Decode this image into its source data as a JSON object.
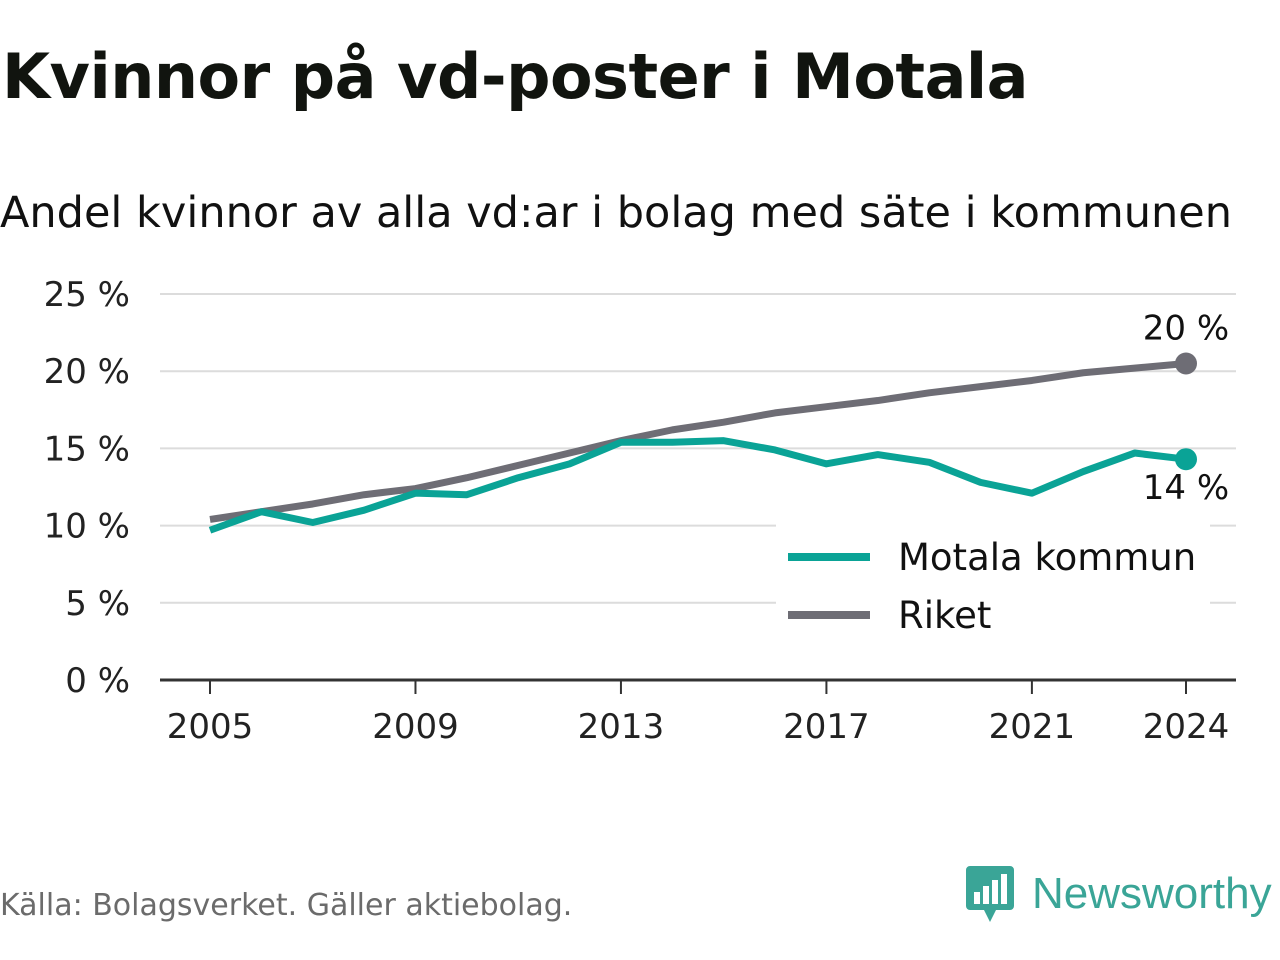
{
  "header": {
    "title": "Kvinnor på vd-poster i Motala",
    "subtitle": "Andel kvinnor av alla vd:ar i bolag med säte i kommunen"
  },
  "footer": {
    "source": "Källa: Bolagsverket. Gäller aktiebolag.",
    "brand": "Newsworthy",
    "brand_icon": "bar-chart-speech-bubble-icon"
  },
  "colors": {
    "motala": "#0aa396",
    "riket": "#6e6d75",
    "grid": "#dcdcdc",
    "axis": "#333333",
    "brand": "#3aa597"
  },
  "chart_data": {
    "type": "line",
    "x": [
      2005,
      2006,
      2007,
      2008,
      2009,
      2010,
      2011,
      2012,
      2013,
      2014,
      2015,
      2016,
      2017,
      2018,
      2019,
      2020,
      2021,
      2022,
      2023,
      2024
    ],
    "series": [
      {
        "name": "Motala kommun",
        "values": [
          9.7,
          10.9,
          10.2,
          11.0,
          12.1,
          12.0,
          13.1,
          14.0,
          15.4,
          15.4,
          15.5,
          14.9,
          14.0,
          14.6,
          14.1,
          12.8,
          12.1,
          13.5,
          14.7,
          14.3
        ]
      },
      {
        "name": "Riket",
        "values": [
          10.4,
          10.9,
          11.4,
          12.0,
          12.4,
          13.1,
          13.9,
          14.7,
          15.5,
          16.2,
          16.7,
          17.3,
          17.7,
          18.1,
          18.6,
          19.0,
          19.4,
          19.9,
          20.2,
          20.5
        ]
      }
    ],
    "end_labels": [
      {
        "series": "Riket",
        "text": "20 %"
      },
      {
        "series": "Motala kommun",
        "text": "14 %"
      }
    ],
    "y_ticks": [
      0,
      5,
      10,
      15,
      20,
      25
    ],
    "y_tick_labels": [
      "0 %",
      "5 %",
      "10 %",
      "15 %",
      "20 %",
      "25 %"
    ],
    "x_ticks": [
      2005,
      2009,
      2013,
      2017,
      2021,
      2024
    ],
    "x_tick_labels": [
      "2005",
      "2009",
      "2013",
      "2017",
      "2021",
      "2024"
    ],
    "ylim": [
      0,
      25
    ],
    "xlim": [
      2004,
      2025
    ],
    "grid": true,
    "legend_position": "bottom-right",
    "xlabel": "",
    "ylabel": ""
  }
}
